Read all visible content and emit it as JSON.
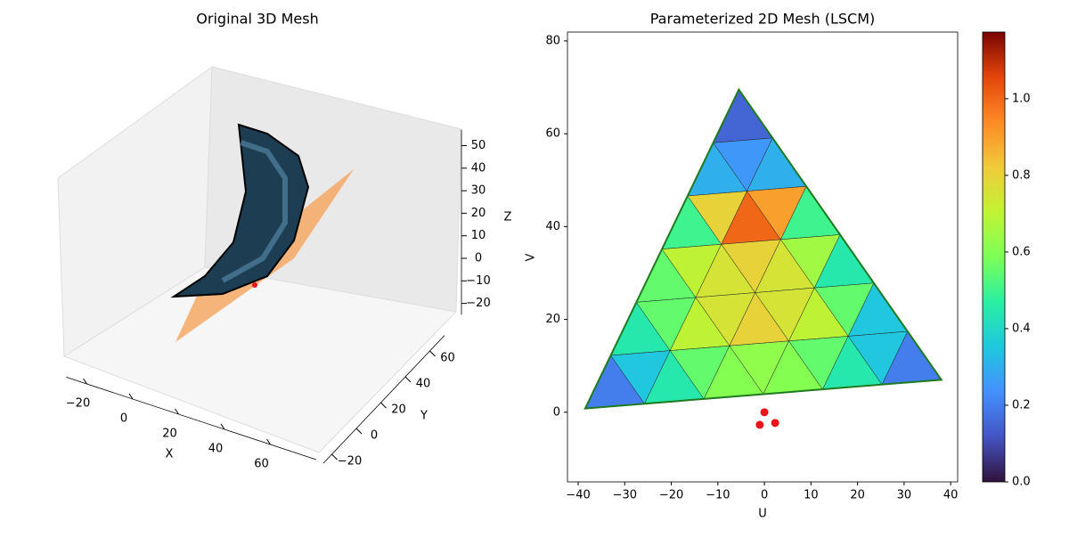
{
  "chart_data": [
    {
      "type": "surface3d",
      "title": "Original 3D Mesh",
      "x_label": "X",
      "y_label": "Y",
      "z_label": "Z",
      "xlim": [
        -29,
        80
      ],
      "ylim": [
        -27,
        72
      ],
      "zlim": [
        -25,
        57
      ],
      "xticks": [
        {
          "value": -20,
          "label": "−20"
        },
        0,
        20,
        40,
        60
      ],
      "yticks": [
        {
          "value": -20,
          "label": "−20"
        },
        0,
        20,
        40,
        60
      ],
      "zticks": [
        {
          "value": -20,
          "label": "−20"
        },
        {
          "value": -10,
          "label": "−10"
        },
        0,
        10,
        20,
        30,
        40,
        50
      ]
    },
    {
      "type": "trimesh",
      "title": "Parameterized 2D Mesh (LSCM)",
      "x_label": "U",
      "y_label": "V",
      "xlim": [
        -42.3,
        41.5
      ],
      "ylim": [
        -15,
        81.9
      ],
      "xticks": [
        {
          "value": -40,
          "label": "−40"
        },
        {
          "value": -30,
          "label": "−30"
        },
        {
          "value": -20,
          "label": "−20"
        },
        {
          "value": -10,
          "label": "−10"
        },
        0,
        10,
        20,
        30,
        40
      ],
      "yticks": [
        0,
        20,
        40,
        60,
        80
      ],
      "corners": [
        [
          -5.5,
          69.5
        ],
        [
          -38.5,
          0.8
        ],
        [
          38,
          7
        ]
      ],
      "values": [
        [
          0.15
        ],
        [
          0.3,
          0.25,
          0.3
        ],
        [
          0.5,
          0.8,
          1.0,
          0.9,
          0.5
        ],
        [
          0.55,
          0.7,
          0.75,
          0.8,
          0.75,
          0.65,
          0.45
        ],
        [
          0.45,
          0.55,
          0.7,
          0.75,
          0.8,
          0.75,
          0.7,
          0.55,
          0.35
        ],
        [
          0.2,
          0.35,
          0.45,
          0.55,
          0.6,
          0.62,
          0.6,
          0.55,
          0.45,
          0.35,
          0.2
        ]
      ],
      "colormap": "turbo",
      "clim": [
        0,
        1.174
      ],
      "colorbar_ticks": [
        {
          "value": 0,
          "label": "0.0"
        },
        {
          "value": 0.2,
          "label": "0.2"
        },
        {
          "value": 0.4,
          "label": "0.4"
        },
        {
          "value": 0.6,
          "label": "0.6"
        },
        {
          "value": 0.8,
          "label": "0.8"
        },
        {
          "value": 1.0,
          "label": "1.0"
        }
      ],
      "edge_color": "#222222",
      "outline_color": "#1f7a1f",
      "series": [
        {
          "color": "#e8151b",
          "x": [
            0,
            -1,
            2.3
          ],
          "y": [
            0,
            -2.7,
            -2.3
          ]
        }
      ]
    }
  ]
}
